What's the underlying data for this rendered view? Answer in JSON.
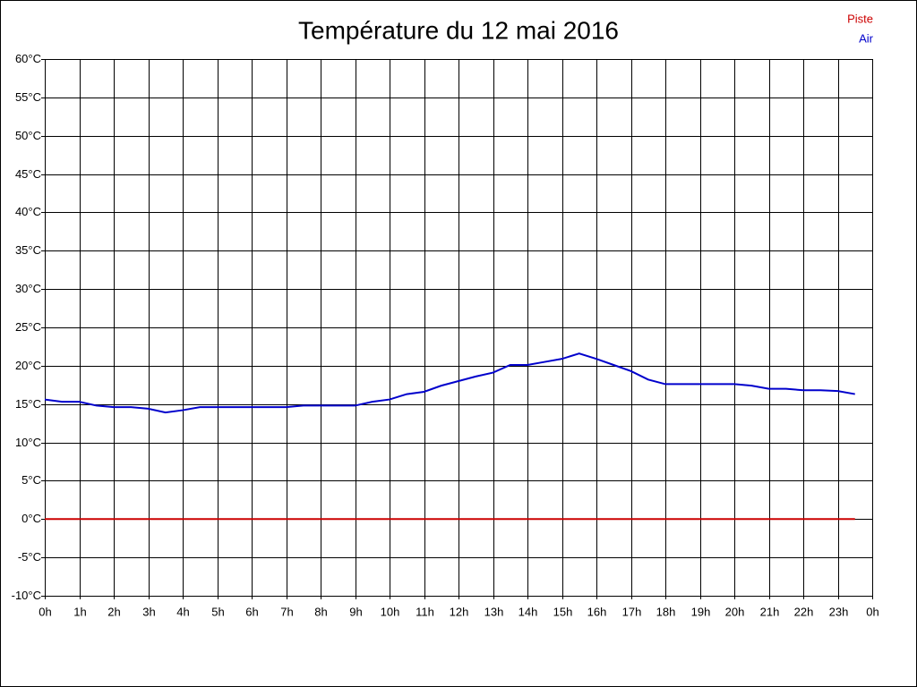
{
  "chart_data": {
    "type": "line",
    "title": "Température du 12 mai 2016",
    "x": [
      0,
      0.5,
      1,
      1.5,
      2,
      2.5,
      3,
      3.5,
      4,
      4.5,
      5,
      5.5,
      6,
      6.5,
      7,
      7.5,
      8,
      8.5,
      9,
      9.5,
      10,
      10.5,
      11,
      11.5,
      12,
      12.5,
      13,
      13.5,
      14,
      14.5,
      15,
      15.5,
      16,
      16.5,
      17,
      17.5,
      18,
      18.5,
      19,
      19.5,
      20,
      20.5,
      21,
      21.5,
      22,
      22.5,
      23,
      23.5
    ],
    "series": [
      {
        "name": "Piste",
        "color": "#cc0000",
        "values": [
          0,
          0,
          0,
          0,
          0,
          0,
          0,
          0,
          0,
          0,
          0,
          0,
          0,
          0,
          0,
          0,
          0,
          0,
          0,
          0,
          0,
          0,
          0,
          0,
          0,
          0,
          0,
          0,
          0,
          0,
          0,
          0,
          0,
          0,
          0,
          0,
          0,
          0,
          0,
          0,
          0,
          0,
          0,
          0,
          0,
          0,
          0,
          0
        ]
      },
      {
        "name": "Air",
        "color": "#0000cc",
        "values": [
          15.6,
          15.3,
          15.3,
          14.8,
          14.6,
          14.6,
          14.4,
          13.9,
          14.2,
          14.6,
          14.6,
          14.6,
          14.6,
          14.6,
          14.6,
          14.8,
          14.8,
          14.8,
          14.8,
          15.3,
          15.6,
          16.3,
          16.6,
          17.4,
          18.0,
          18.6,
          19.1,
          20.1,
          20.1,
          20.5,
          20.9,
          21.6,
          20.9,
          20.1,
          19.3,
          18.2,
          17.6,
          17.6,
          17.6,
          17.6,
          17.6,
          17.4,
          17.0,
          17.0,
          16.8,
          16.8,
          16.7,
          16.3
        ]
      }
    ],
    "xlim": [
      0,
      24
    ],
    "xticks": [
      {
        "value": 0,
        "label": "0h"
      },
      {
        "value": 1,
        "label": "1h"
      },
      {
        "value": 2,
        "label": "2h"
      },
      {
        "value": 3,
        "label": "3h"
      },
      {
        "value": 4,
        "label": "4h"
      },
      {
        "value": 5,
        "label": "5h"
      },
      {
        "value": 6,
        "label": "6h"
      },
      {
        "value": 7,
        "label": "7h"
      },
      {
        "value": 8,
        "label": "8h"
      },
      {
        "value": 9,
        "label": "9h"
      },
      {
        "value": 10,
        "label": "10h"
      },
      {
        "value": 11,
        "label": "11h"
      },
      {
        "value": 12,
        "label": "12h"
      },
      {
        "value": 13,
        "label": "13h"
      },
      {
        "value": 14,
        "label": "14h"
      },
      {
        "value": 15,
        "label": "15h"
      },
      {
        "value": 16,
        "label": "16h"
      },
      {
        "value": 17,
        "label": "17h"
      },
      {
        "value": 18,
        "label": "18h"
      },
      {
        "value": 19,
        "label": "19h"
      },
      {
        "value": 20,
        "label": "20h"
      },
      {
        "value": 21,
        "label": "21h"
      },
      {
        "value": 22,
        "label": "22h"
      },
      {
        "value": 23,
        "label": "23h"
      },
      {
        "value": 24,
        "label": "0h"
      }
    ],
    "ylim": [
      -10,
      60
    ],
    "yticks": [
      {
        "value": -10,
        "label": "-10°C"
      },
      {
        "value": -5,
        "label": "-5°C"
      },
      {
        "value": 0,
        "label": "0°C"
      },
      {
        "value": 5,
        "label": "5°C"
      },
      {
        "value": 10,
        "label": "10°C"
      },
      {
        "value": 15,
        "label": "15°C"
      },
      {
        "value": 20,
        "label": "20°C"
      },
      {
        "value": 25,
        "label": "25°C"
      },
      {
        "value": 30,
        "label": "30°C"
      },
      {
        "value": 35,
        "label": "35°C"
      },
      {
        "value": 40,
        "label": "40°C"
      },
      {
        "value": 45,
        "label": "45°C"
      },
      {
        "value": 50,
        "label": "50°C"
      },
      {
        "value": 55,
        "label": "55°C"
      },
      {
        "value": 60,
        "label": "60°C"
      }
    ],
    "grid": true,
    "legend": "top-right"
  }
}
